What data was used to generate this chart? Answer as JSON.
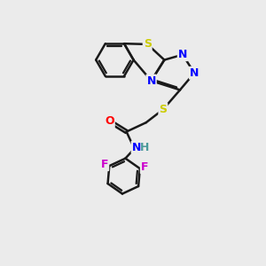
{
  "background_color": "#ebebeb",
  "line_color": "#1a1a1a",
  "bond_width": 1.8,
  "atom_colors": {
    "S": "#cccc00",
    "N": "#0000ff",
    "O": "#ff0000",
    "F": "#cc00cc",
    "C": "#1a1a1a",
    "H": "#4a9a9a"
  },
  "font_size": 9
}
